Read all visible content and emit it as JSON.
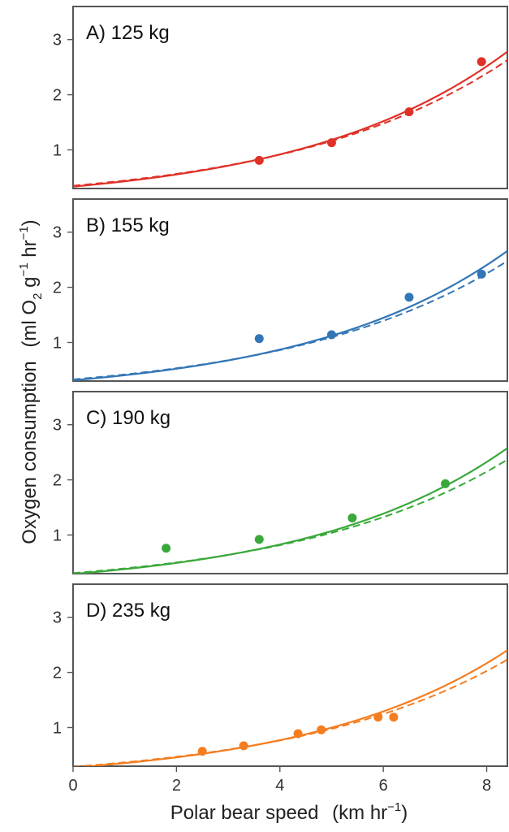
{
  "chart_data": {
    "type": "scatter",
    "layout": "4 vertically stacked panels, shared x-axis",
    "xlabel": {
      "main": "Polar bear speed",
      "unit_open": "(km hr",
      "unit_sup": "−1",
      "unit_close": ")"
    },
    "ylabel": {
      "main": "Oxygen consumption",
      "unit_open": "(ml O",
      "unit_sub": "2",
      "unit_mid1": " g",
      "unit_sup1": "−1",
      "unit_mid2": " hr",
      "unit_sup2": "−1",
      "unit_close": ")"
    },
    "xlim": [
      0,
      8.4
    ],
    "ylim": [
      0.3,
      3.6
    ],
    "x_ticks": [
      0,
      2,
      4,
      6,
      8
    ],
    "y_ticks": [
      1,
      2,
      3
    ],
    "grid": false,
    "legend": "none",
    "curve_styles": [
      "solid fitted curve",
      "dashed fitted curve"
    ],
    "panels": [
      {
        "label": "A) 125 kg",
        "color": "#e03127",
        "points": [
          {
            "x": 3.6,
            "y": 0.81
          },
          {
            "x": 5.0,
            "y": 1.13
          },
          {
            "x": 6.5,
            "y": 1.69
          },
          {
            "x": 7.9,
            "y": 2.6
          }
        ],
        "fit_solid": [
          0.335,
          0.252
        ],
        "fit_dashed": [
          0.35,
          0.24
        ]
      },
      {
        "label": "B) 155 kg",
        "color": "#3276b5",
        "points": [
          {
            "x": 3.6,
            "y": 1.07
          },
          {
            "x": 5.0,
            "y": 1.14
          },
          {
            "x": 6.5,
            "y": 1.82
          },
          {
            "x": 7.9,
            "y": 2.24
          }
        ],
        "fit_solid": [
          0.315,
          0.254
        ],
        "fit_dashed": [
          0.33,
          0.24
        ]
      },
      {
        "label": "C) 190 kg",
        "color": "#3aa83b",
        "points": [
          {
            "x": 1.8,
            "y": 0.76
          },
          {
            "x": 3.6,
            "y": 0.92
          },
          {
            "x": 5.4,
            "y": 1.31
          },
          {
            "x": 7.2,
            "y": 1.93
          }
        ],
        "fit_solid": [
          0.295,
          0.258
        ],
        "fit_dashed": [
          0.31,
          0.242
        ]
      },
      {
        "label": "D) 235 kg",
        "color": "#f47d20",
        "points": [
          {
            "x": 2.5,
            "y": 0.57
          },
          {
            "x": 3.3,
            "y": 0.67
          },
          {
            "x": 4.35,
            "y": 0.89
          },
          {
            "x": 4.8,
            "y": 0.96
          },
          {
            "x": 5.9,
            "y": 1.19
          },
          {
            "x": 6.2,
            "y": 1.19
          }
        ],
        "fit_solid": [
          0.275,
          0.258
        ],
        "fit_dashed": [
          0.29,
          0.243
        ]
      }
    ]
  }
}
